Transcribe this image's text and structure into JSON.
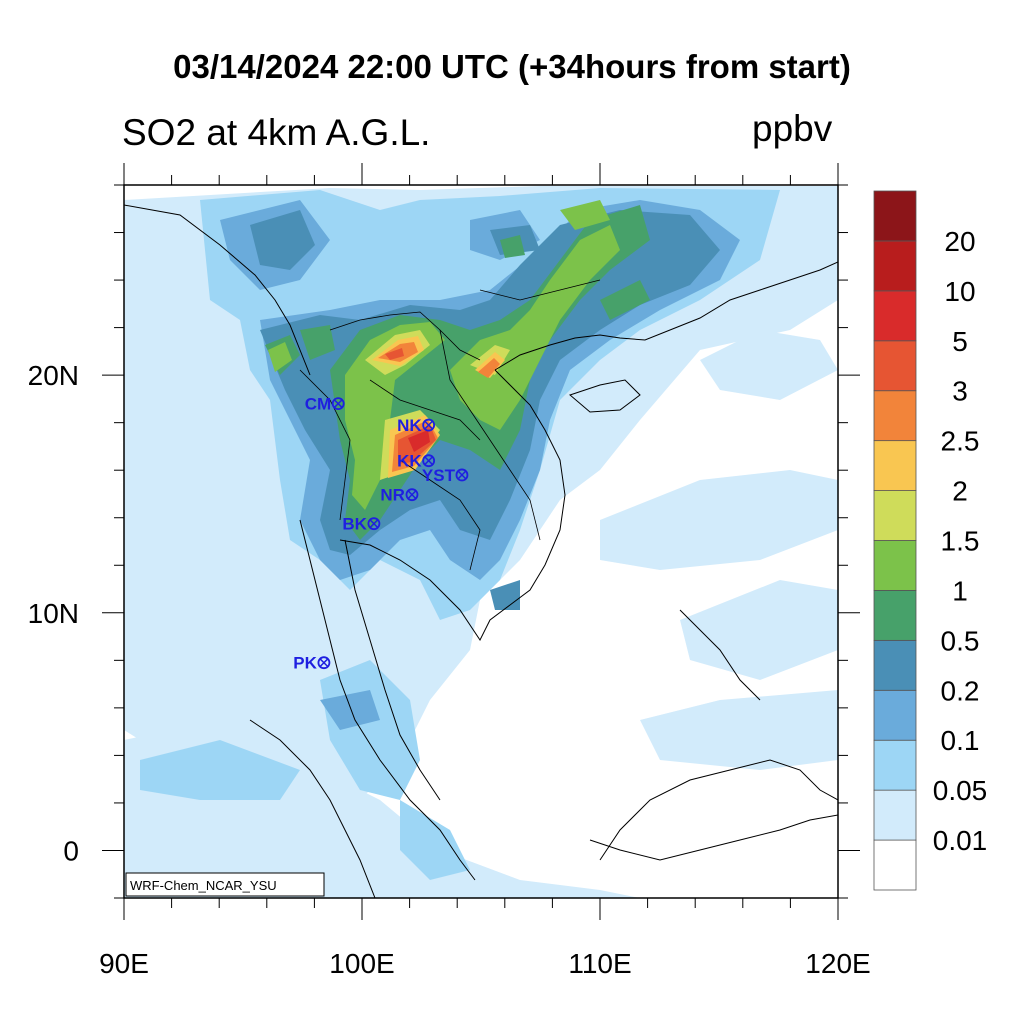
{
  "header": {
    "title": "03/14/2024 22:00 UTC (+34hours from start)",
    "left_title": "SO2 at 4km A.G.L.",
    "units": "ppbv"
  },
  "axes": {
    "x_ticks": [
      {
        "lon": 90,
        "label": "90E"
      },
      {
        "lon": 100,
        "label": "100E"
      },
      {
        "lon": 110,
        "label": "110E"
      },
      {
        "lon": 120,
        "label": "120E"
      }
    ],
    "y_ticks": [
      {
        "lat": 20,
        "label": "20N"
      },
      {
        "lat": 10,
        "label": "10N"
      },
      {
        "lat": 0,
        "label": "0"
      }
    ],
    "lon_range": [
      90,
      120
    ],
    "lat_range": [
      -2,
      28
    ]
  },
  "colorbar": {
    "colors": [
      "#ffffff",
      "#d2ebfb",
      "#9dd6f5",
      "#6aabdb",
      "#4a8fb6",
      "#47a16a",
      "#7cc24a",
      "#cfdc5a",
      "#f9c651",
      "#f2843a",
      "#e65533",
      "#d92b2b",
      "#b81d1d",
      "#8c1519"
    ],
    "labels": [
      "0.01",
      "0.05",
      "0.1",
      "0.2",
      "0.5",
      "1",
      "1.5",
      "2",
      "2.5",
      "3",
      "5",
      "10",
      "20"
    ]
  },
  "stations": [
    {
      "code": "CM",
      "lon": 99.0,
      "lat": 18.8
    },
    {
      "code": "NK",
      "lon": 102.8,
      "lat": 17.9
    },
    {
      "code": "KK",
      "lon": 102.8,
      "lat": 16.4
    },
    {
      "code": "YST",
      "lon": 104.2,
      "lat": 15.8
    },
    {
      "code": "NR",
      "lon": 102.1,
      "lat": 14.97
    },
    {
      "code": "BK",
      "lon": 100.5,
      "lat": 13.75
    },
    {
      "code": "PK",
      "lon": 98.4,
      "lat": 7.9
    }
  ],
  "watermark": "WRF-Chem_NCAR_YSU"
}
